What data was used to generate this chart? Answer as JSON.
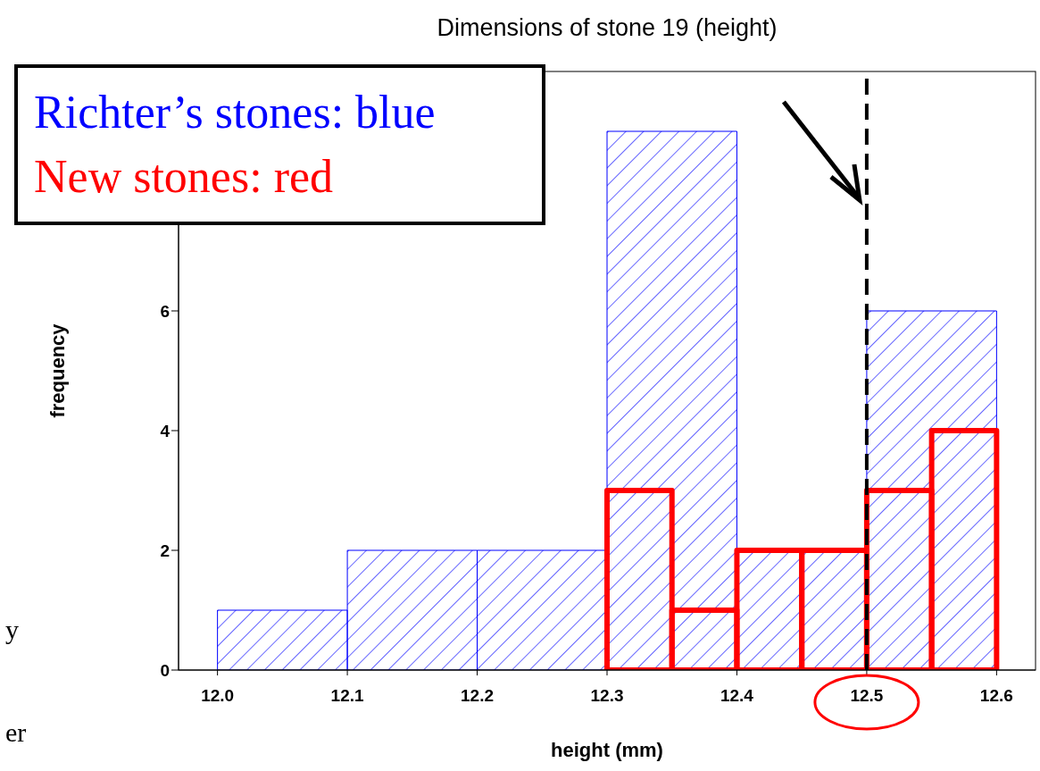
{
  "chart_data": {
    "type": "histogram",
    "title": "Dimensions of stone 19 (height)",
    "xlabel": "height (mm)",
    "ylabel": "frequency",
    "bins": [
      12.0,
      12.1,
      12.2,
      12.3,
      12.4,
      12.5,
      12.6
    ],
    "series": [
      {
        "name": "Richter’s stones: blue",
        "color": "#0000ff",
        "values": [
          1,
          2,
          2,
          9,
          2,
          6
        ]
      },
      {
        "name": "New stones: red",
        "color": "#ff0000",
        "bins": [
          12.3,
          12.35,
          12.4,
          12.45,
          12.5,
          12.55,
          12.6
        ],
        "values": [
          3,
          1,
          2,
          2,
          3,
          4
        ]
      }
    ],
    "xlim": [
      11.97,
      12.63
    ],
    "xticks": [
      {
        "value": 12.0,
        "label": "12.0"
      },
      {
        "value": 12.1,
        "label": "12.1"
      },
      {
        "value": 12.2,
        "label": "12.2"
      },
      {
        "value": 12.3,
        "label": "12.3"
      },
      {
        "value": 12.4,
        "label": "12.4"
      },
      {
        "value": 12.5,
        "label": "12.5"
      },
      {
        "value": 12.6,
        "label": "12.6"
      }
    ],
    "ylim": [
      0,
      10
    ],
    "yticks": [
      0,
      2,
      4,
      6
    ],
    "ref_lines": [
      {
        "axis": "x",
        "value": 12.5,
        "color": "#000000",
        "line_style": "dashed"
      }
    ],
    "legend": "top left",
    "grid": false,
    "annotations": [
      "y",
      "er"
    ]
  }
}
